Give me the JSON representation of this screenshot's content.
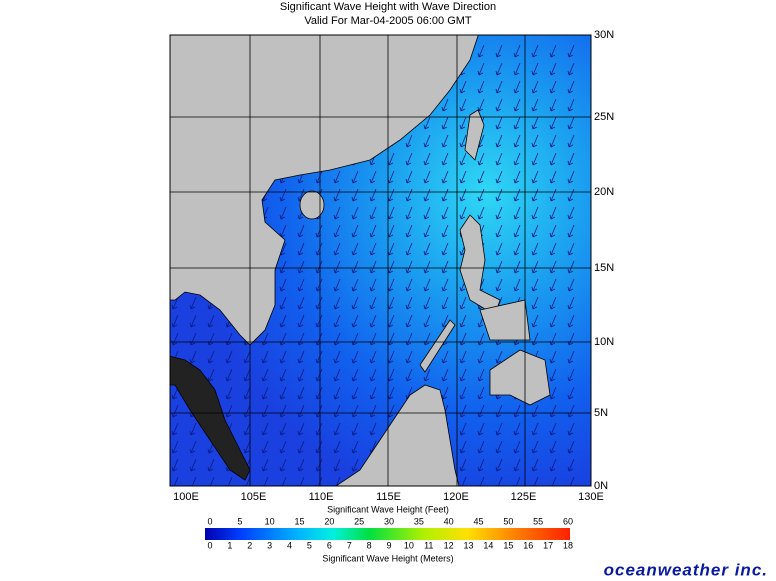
{
  "header": {
    "title": "Significant Wave Height with Wave Direction",
    "subtitle": "Valid For Mar-04-2005 06:00 GMT"
  },
  "map": {
    "lon_labels": [
      "100E",
      "105E",
      "110E",
      "115E",
      "120E",
      "125E",
      "130E"
    ],
    "lat_labels": [
      "30N",
      "25N",
      "20N",
      "15N",
      "10N",
      "5N",
      "0N"
    ]
  },
  "colorbar": {
    "feet_title": "Significant Wave Height (Feet)",
    "feet_labels": [
      "0",
      "5",
      "10",
      "15",
      "20",
      "25",
      "30",
      "35",
      "40",
      "45",
      "50",
      "55",
      "60"
    ],
    "meters_title": "Significant Wave Height (Meters)",
    "meters_labels": [
      "0",
      "1",
      "2",
      "3",
      "4",
      "5",
      "6",
      "7",
      "8",
      "9",
      "10",
      "11",
      "12",
      "13",
      "14",
      "15",
      "16",
      "17",
      "18"
    ]
  },
  "footer": {
    "logo": "oceanweather inc."
  }
}
